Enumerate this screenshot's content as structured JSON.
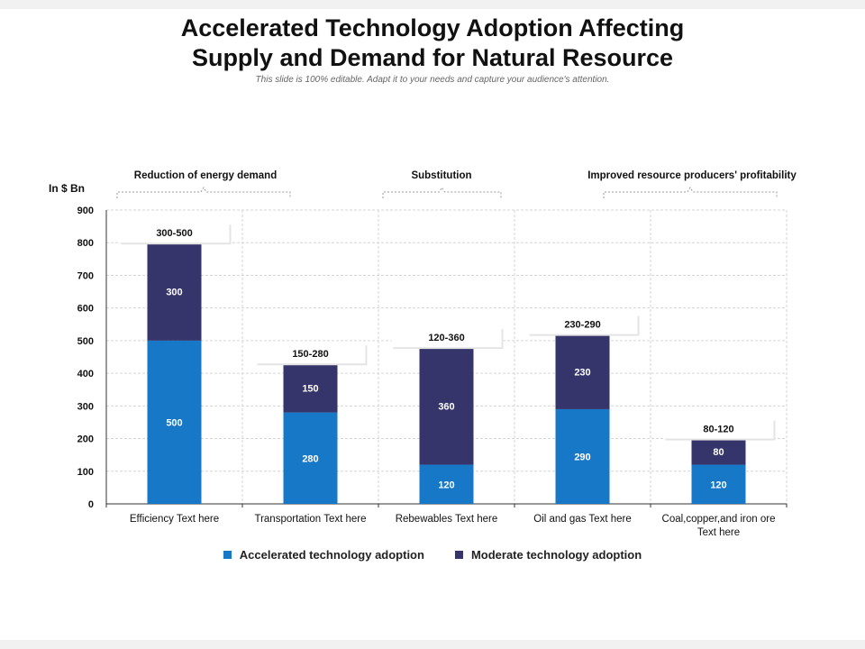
{
  "slide": {
    "title_line1": "Accelerated Technology Adoption Affecting",
    "title_line2": "Supply and Demand for Natural Resource",
    "subtitle": "This slide is 100% editable. Adapt it to your needs and capture your audience's attention."
  },
  "colors": {
    "accelerated": "#1878c8",
    "moderate": "#35346b",
    "grid": "#d6d6d6"
  },
  "chart_data": {
    "type": "bar",
    "stacked": true,
    "ylabel": "In $ Bn",
    "ylim": [
      0,
      900
    ],
    "yticks": [
      0,
      100,
      200,
      300,
      400,
      500,
      600,
      700,
      800,
      900
    ],
    "categories": [
      [
        "Efficiency Text here"
      ],
      [
        "Transportation Text here"
      ],
      [
        "Rebewables Text here"
      ],
      [
        "Oil and gas Text here"
      ],
      [
        "Coal,copper,and iron ore",
        "Text here"
      ]
    ],
    "series": [
      {
        "name": "Accelerated technology adoption",
        "values": [
          500,
          280,
          120,
          290,
          120
        ]
      },
      {
        "name": "Moderate technology adoption",
        "values": [
          300,
          150,
          360,
          230,
          80
        ]
      }
    ],
    "range_labels": [
      "300-500",
      "150-280",
      "120-360",
      "230-290",
      "80-120"
    ],
    "groups": [
      {
        "label": "Reduction of energy demand",
        "from": 0,
        "to": 1
      },
      {
        "label": "Substitution",
        "from": 2,
        "to": 2
      },
      {
        "label": "Improved resource producers' profitability",
        "from": 3,
        "to": 4
      }
    ]
  }
}
